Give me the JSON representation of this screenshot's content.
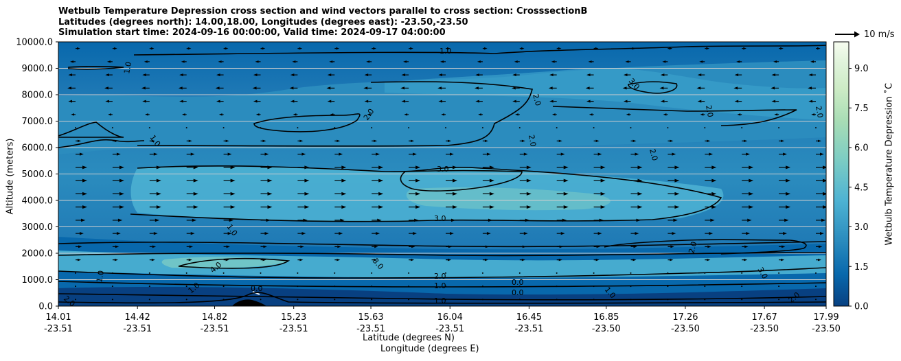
{
  "chart_data": {
    "type": "contour",
    "title_lines": [
      "Wetbulb Temperature Depression cross section and wind vectors parallel to cross section: CrosssectionB",
      "Latitudes (degrees north): 14.00,18.00, Longitudes (degrees east): -23.50,-23.50",
      "Simulation start time: 2024-09-16 00:00:00, Valid time: 2024-09-17 04:00:00"
    ],
    "xlabel_line1": "Latitude (degrees N)",
    "xlabel_line2": "Longitude (degrees E)",
    "ylabel": "Altitude (meters)",
    "ylim": [
      0,
      10000
    ],
    "y_ticks": [
      "0.0",
      "1000.0",
      "2000.0",
      "3000.0",
      "4000.0",
      "5000.0",
      "6000.0",
      "7000.0",
      "8000.0",
      "9000.0",
      "10000.0"
    ],
    "y_tick_values": [
      0,
      1000,
      2000,
      3000,
      4000,
      5000,
      6000,
      7000,
      8000,
      9000,
      10000
    ],
    "x_ticks": [
      {
        "lat": "14.01",
        "lon": "-23.51"
      },
      {
        "lat": "14.42",
        "lon": "-23.51"
      },
      {
        "lat": "14.82",
        "lon": "-23.51"
      },
      {
        "lat": "15.23",
        "lon": "-23.51"
      },
      {
        "lat": "15.63",
        "lon": "-23.51"
      },
      {
        "lat": "16.04",
        "lon": "-23.51"
      },
      {
        "lat": "16.45",
        "lon": "-23.51"
      },
      {
        "lat": "16.85",
        "lon": "-23.50"
      },
      {
        "lat": "17.26",
        "lon": "-23.50"
      },
      {
        "lat": "17.67",
        "lon": "-23.50"
      },
      {
        "lat": "17.99",
        "lon": "-23.50"
      }
    ],
    "x_range": [
      14.01,
      17.99
    ],
    "colorbar": {
      "label": "Wetbulb Temperature Depression $^\\circ$C",
      "label_display": "Wetbulb Temperature Depression ˚C",
      "range": [
        0,
        10
      ],
      "ticks": [
        "0.0",
        "1.5",
        "3.0",
        "4.5",
        "6.0",
        "7.5",
        "9.0"
      ],
      "tick_values": [
        0,
        1.5,
        3.0,
        4.5,
        6.0,
        7.5,
        9.0
      ],
      "levels": [
        0,
        0.5,
        1,
        1.5,
        2,
        2.5,
        3,
        3.5,
        4,
        4.5,
        5,
        5.5,
        6,
        6.5,
        7,
        7.5,
        8,
        8.5,
        9,
        9.5,
        10
      ]
    },
    "contour_labels": [
      "1.0",
      "2.0",
      "3.0",
      "4.0",
      "0.0"
    ],
    "wind_key": "10 m/s",
    "wind_pattern": [
      {
        "alt": 0,
        "dir": 0
      },
      {
        "alt": 500,
        "dir": 0
      },
      {
        "alt": 1000,
        "dir": 0
      },
      {
        "alt": 1500,
        "dir": 0.3
      },
      {
        "alt": 2000,
        "dir": 0.4
      },
      {
        "alt": 2500,
        "dir": 0.6
      },
      {
        "alt": 3000,
        "dir": 0.8
      },
      {
        "alt": 3500,
        "dir": 1
      },
      {
        "alt": 4000,
        "dir": 1
      },
      {
        "alt": 4500,
        "dir": 1
      },
      {
        "alt": 5000,
        "dir": 1
      },
      {
        "alt": 5500,
        "dir": 0.6
      },
      {
        "alt": 6000,
        "dir": 0.3
      },
      {
        "alt": 6500,
        "dir": 0.1
      },
      {
        "alt": 7000,
        "dir": -0.2
      },
      {
        "alt": 7500,
        "dir": -0.5
      },
      {
        "alt": 8000,
        "dir": -0.6
      },
      {
        "alt": 8500,
        "dir": -0.5
      },
      {
        "alt": 9000,
        "dir": -0.3
      },
      {
        "alt": 9500,
        "dir": 0.2
      }
    ],
    "colors": {
      "c0": "#084081",
      "c1": "#0868ac",
      "c2": "#2b8cbe",
      "c3": "#4eb3d3",
      "c4": "#7bccc4",
      "c5": "#a8ddb5",
      "c6": "#ccebc5",
      "c7": "#e0f3db",
      "c8": "#f7fcf0"
    }
  }
}
